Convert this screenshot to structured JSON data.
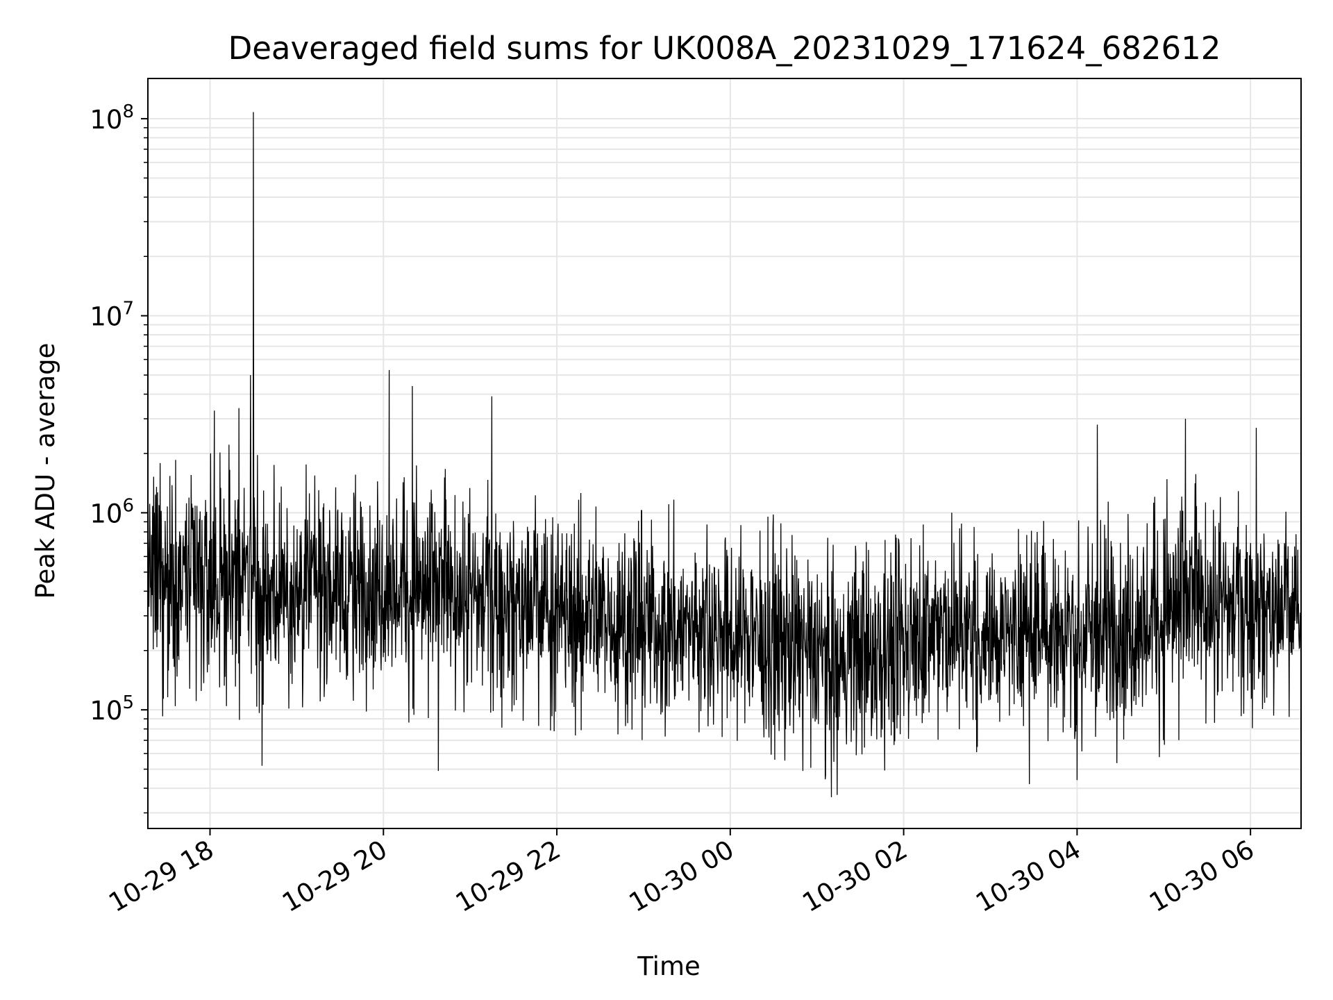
{
  "chart_data": {
    "type": "line",
    "title": "Deaveraged field sums for UK008A_20231029_171624_682612",
    "xlabel": "Time",
    "ylabel": "Peak ADU - average",
    "yscale": "log",
    "xlim": [
      "2023-10-29 17:17",
      "2023-10-30 06:35"
    ],
    "ylim": [
      25000,
      160000000
    ],
    "grid": true,
    "line_color": "#000000",
    "grid_color": "#e6e6e6",
    "x_tick_labels": [
      "10-29 18",
      "10-29 20",
      "10-29 22",
      "10-30 00",
      "10-30 02",
      "10-30 04",
      "10-30 06"
    ],
    "x_tick_values": [
      "2023-10-29 18:00",
      "2023-10-29 20:00",
      "2023-10-29 22:00",
      "2023-10-30 00:00",
      "2023-10-30 02:00",
      "2023-10-30 04:00",
      "2023-10-30 06:00"
    ],
    "y_tick_labels": [
      {
        "base": "10",
        "exp": "5"
      },
      {
        "base": "10",
        "exp": "6"
      },
      {
        "base": "10",
        "exp": "7"
      },
      {
        "base": "10",
        "exp": "8"
      }
    ],
    "y_tick_values": [
      100000,
      1000000,
      10000000,
      100000000
    ],
    "series": [
      {
        "name": "",
        "noise_profile": [
          {
            "x": "2023-10-29 17:17",
            "low": 120000,
            "high": 1700000
          },
          {
            "x": "2023-10-29 18:30",
            "low": 110000,
            "high": 1600000
          },
          {
            "x": "2023-10-29 20:00",
            "low": 120000,
            "high": 1500000
          },
          {
            "x": "2023-10-29 21:30",
            "low": 100000,
            "high": 1200000
          },
          {
            "x": "2023-10-29 23:00",
            "low": 85000,
            "high": 900000
          },
          {
            "x": "2023-10-30 00:30",
            "low": 70000,
            "high": 800000
          },
          {
            "x": "2023-10-30 01:15",
            "low": 50000,
            "high": 650000
          },
          {
            "x": "2023-10-30 02:30",
            "low": 75000,
            "high": 800000
          },
          {
            "x": "2023-10-30 03:30",
            "low": 85000,
            "high": 750000
          },
          {
            "x": "2023-10-30 04:30",
            "low": 65000,
            "high": 1000000
          },
          {
            "x": "2023-10-30 05:15",
            "low": 90000,
            "high": 1300000
          },
          {
            "x": "2023-10-30 06:35",
            "low": 110000,
            "high": 900000
          }
        ],
        "spikes": [
          {
            "x": "2023-10-29 18:30",
            "y": 108000000
          },
          {
            "x": "2023-10-29 18:28",
            "y": 5000000
          },
          {
            "x": "2023-10-29 18:20",
            "y": 3400000
          },
          {
            "x": "2023-10-29 18:03",
            "y": 3300000
          },
          {
            "x": "2023-10-29 20:04",
            "y": 5300000
          },
          {
            "x": "2023-10-29 20:20",
            "y": 4400000
          },
          {
            "x": "2023-10-29 21:15",
            "y": 3900000
          },
          {
            "x": "2023-10-30 04:14",
            "y": 2800000
          },
          {
            "x": "2023-10-30 05:15",
            "y": 3000000
          },
          {
            "x": "2023-10-30 06:04",
            "y": 2700000
          },
          {
            "x": "2023-10-29 18:36",
            "y": 52000
          },
          {
            "x": "2023-10-29 20:38",
            "y": 49000
          },
          {
            "x": "2023-10-30 01:10",
            "y": 36000
          },
          {
            "x": "2023-10-30 01:14",
            "y": 37000
          },
          {
            "x": "2023-10-30 03:27",
            "y": 42000
          },
          {
            "x": "2023-10-30 04:00",
            "y": 44000
          }
        ]
      }
    ]
  }
}
